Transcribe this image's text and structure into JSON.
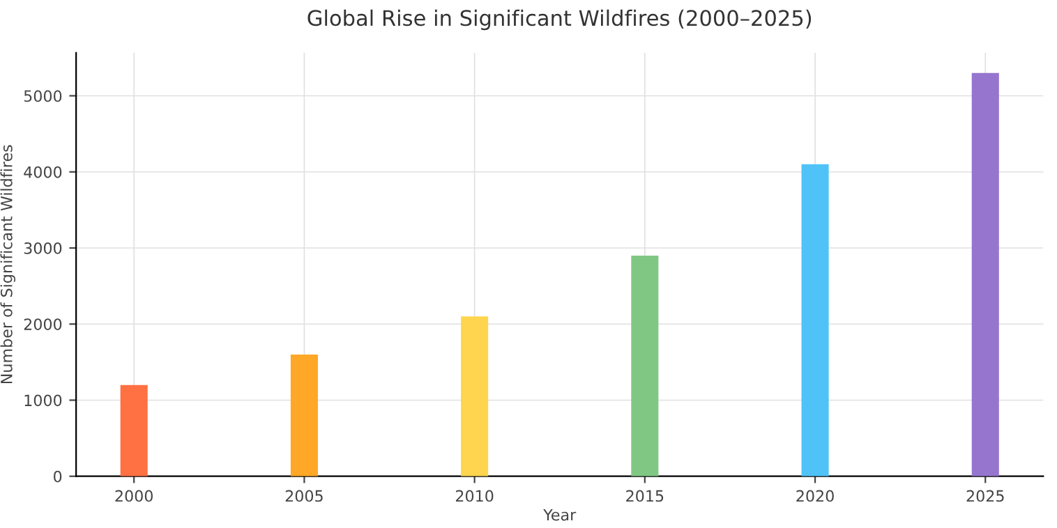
{
  "chart_data": {
    "type": "bar",
    "title": "Global Rise in Significant Wildfires (2000–2025)",
    "xlabel": "Year",
    "ylabel": "Number of Significant Wildfires",
    "x": [
      2000,
      2005,
      2010,
      2015,
      2020,
      2025
    ],
    "values": [
      1200,
      1600,
      2100,
      2900,
      4100,
      5300
    ],
    "colors": [
      "#ff7043",
      "#ffa726",
      "#ffd54f",
      "#81c784",
      "#4fc3f7",
      "#9575cd"
    ],
    "xlim": [
      1998.3,
      2026.7
    ],
    "xticks": [
      2000,
      2005,
      2010,
      2015,
      2020,
      2025
    ],
    "ylim": [
      0,
      5565
    ],
    "yticks": [
      0,
      1000,
      2000,
      3000,
      4000,
      5000
    ],
    "grid": true
  }
}
